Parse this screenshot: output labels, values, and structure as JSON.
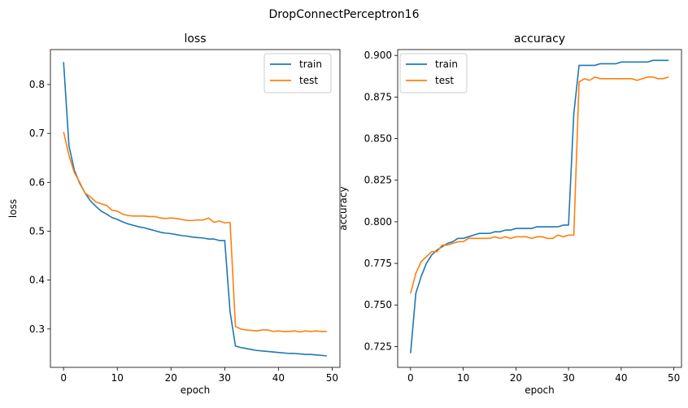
{
  "suptitle": "DropConnectPerceptron16",
  "colors": {
    "train": "#1f77b4",
    "test": "#ff7f0e"
  },
  "chart_data": [
    {
      "type": "line",
      "title": "loss",
      "xlabel": "epoch",
      "ylabel": "loss",
      "xlim": [
        -2.45,
        51.45
      ],
      "ylim": [
        0.2215,
        0.8715
      ],
      "xticks": [
        0,
        10,
        20,
        30,
        40,
        50
      ],
      "yticks": [
        0.3,
        0.4,
        0.5,
        0.6,
        0.7,
        0.8
      ],
      "ytick_labels": [
        "0.3",
        "0.4",
        "0.5",
        "0.6",
        "0.7",
        "0.8"
      ],
      "legend_position": "top-right",
      "x": [
        0,
        1,
        2,
        3,
        4,
        5,
        6,
        7,
        8,
        9,
        10,
        11,
        12,
        13,
        14,
        15,
        16,
        17,
        18,
        19,
        20,
        21,
        22,
        23,
        24,
        25,
        26,
        27,
        28,
        29,
        30,
        31,
        32,
        33,
        34,
        35,
        36,
        37,
        38,
        39,
        40,
        41,
        42,
        43,
        44,
        45,
        46,
        47,
        48,
        49
      ],
      "series": [
        {
          "name": "train",
          "color": "#1f77b4",
          "values": [
            0.846,
            0.675,
            0.625,
            0.598,
            0.578,
            0.562,
            0.551,
            0.541,
            0.535,
            0.528,
            0.524,
            0.519,
            0.515,
            0.512,
            0.509,
            0.507,
            0.504,
            0.501,
            0.498,
            0.496,
            0.495,
            0.493,
            0.491,
            0.49,
            0.488,
            0.487,
            0.486,
            0.484,
            0.484,
            0.481,
            0.481,
            0.335,
            0.265,
            0.262,
            0.26,
            0.258,
            0.256,
            0.255,
            0.254,
            0.253,
            0.252,
            0.251,
            0.25,
            0.25,
            0.249,
            0.248,
            0.248,
            0.247,
            0.246,
            0.245
          ]
        },
        {
          "name": "test",
          "color": "#ff7f0e",
          "values": [
            0.703,
            0.655,
            0.62,
            0.6,
            0.578,
            0.57,
            0.56,
            0.556,
            0.553,
            0.543,
            0.541,
            0.535,
            0.532,
            0.531,
            0.531,
            0.531,
            0.53,
            0.53,
            0.527,
            0.526,
            0.527,
            0.526,
            0.524,
            0.522,
            0.522,
            0.523,
            0.523,
            0.527,
            0.518,
            0.521,
            0.517,
            0.518,
            0.305,
            0.3,
            0.298,
            0.297,
            0.296,
            0.298,
            0.298,
            0.295,
            0.296,
            0.295,
            0.295,
            0.296,
            0.294,
            0.296,
            0.295,
            0.296,
            0.295,
            0.295
          ]
        }
      ]
    },
    {
      "type": "line",
      "title": "accuracy",
      "xlabel": "epoch",
      "ylabel": "accuracy",
      "xlim": [
        -2.45,
        51.45
      ],
      "ylim": [
        0.7125,
        0.9035
      ],
      "xticks": [
        0,
        10,
        20,
        30,
        40,
        50
      ],
      "yticks": [
        0.725,
        0.75,
        0.775,
        0.8,
        0.825,
        0.85,
        0.875,
        0.9
      ],
      "ytick_labels": [
        "0.725",
        "0.750",
        "0.775",
        "0.800",
        "0.825",
        "0.850",
        "0.875",
        "0.900"
      ],
      "legend_position": "top-left",
      "x": [
        0,
        1,
        2,
        3,
        4,
        5,
        6,
        7,
        8,
        9,
        10,
        11,
        12,
        13,
        14,
        15,
        16,
        17,
        18,
        19,
        20,
        21,
        22,
        23,
        24,
        25,
        26,
        27,
        28,
        29,
        30,
        31,
        32,
        33,
        34,
        35,
        36,
        37,
        38,
        39,
        40,
        41,
        42,
        43,
        44,
        45,
        46,
        47,
        48,
        49
      ],
      "series": [
        {
          "name": "train",
          "color": "#1f77b4",
          "values": [
            0.721,
            0.757,
            0.767,
            0.775,
            0.78,
            0.783,
            0.785,
            0.787,
            0.788,
            0.79,
            0.79,
            0.791,
            0.792,
            0.793,
            0.793,
            0.793,
            0.794,
            0.794,
            0.795,
            0.795,
            0.796,
            0.796,
            0.796,
            0.796,
            0.797,
            0.797,
            0.797,
            0.797,
            0.797,
            0.798,
            0.798,
            0.865,
            0.894,
            0.894,
            0.894,
            0.894,
            0.895,
            0.895,
            0.895,
            0.895,
            0.896,
            0.896,
            0.896,
            0.896,
            0.896,
            0.896,
            0.897,
            0.897,
            0.897,
            0.897
          ]
        },
        {
          "name": "test",
          "color": "#ff7f0e",
          "values": [
            0.757,
            0.769,
            0.776,
            0.779,
            0.782,
            0.782,
            0.786,
            0.786,
            0.787,
            0.788,
            0.788,
            0.79,
            0.79,
            0.79,
            0.79,
            0.79,
            0.791,
            0.79,
            0.791,
            0.79,
            0.791,
            0.791,
            0.791,
            0.79,
            0.791,
            0.791,
            0.79,
            0.79,
            0.792,
            0.791,
            0.792,
            0.792,
            0.884,
            0.886,
            0.885,
            0.887,
            0.886,
            0.886,
            0.886,
            0.886,
            0.886,
            0.886,
            0.886,
            0.885,
            0.886,
            0.887,
            0.887,
            0.886,
            0.886,
            0.887
          ]
        }
      ]
    }
  ]
}
